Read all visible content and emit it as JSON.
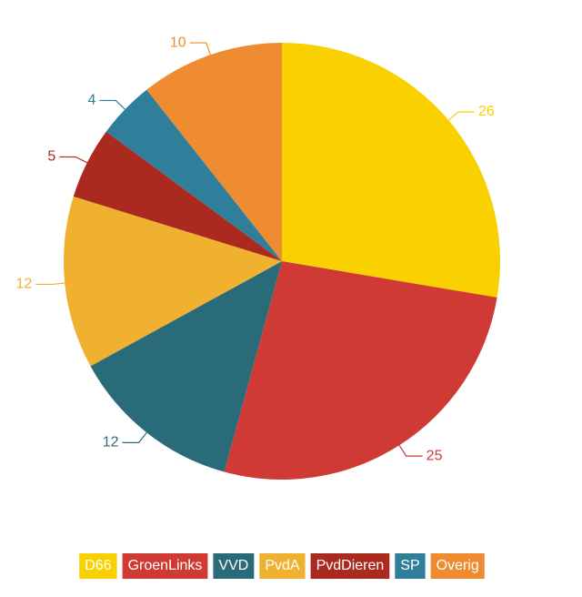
{
  "chart_data": {
    "type": "pie",
    "categories": [
      "D66",
      "GroenLinks",
      "VVD",
      "PvdA",
      "PvdDieren",
      "SP",
      "Overig"
    ],
    "values": [
      26,
      25,
      12,
      12,
      5,
      4,
      10
    ],
    "colors": [
      "#f9d000",
      "#cf3a35",
      "#2a6b7a",
      "#f0b030",
      "#aa2a20",
      "#2f7f9a",
      "#ef8b30"
    ],
    "legend": "bottom"
  }
}
